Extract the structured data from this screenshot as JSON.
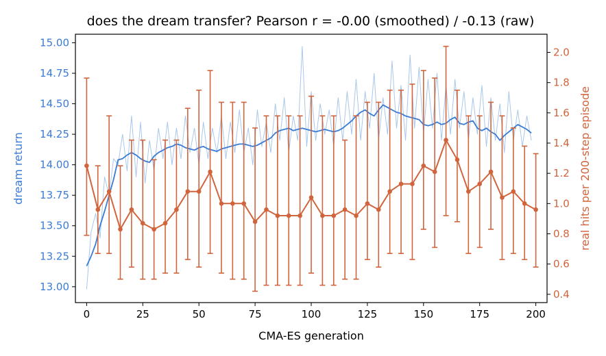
{
  "chart_data": {
    "type": "line",
    "title": "does the dream transfer?   Pearson r = -0.00 (smoothed) / -0.13 (raw)",
    "xlabel": "CMA-ES generation",
    "ylabel_left": "dream return",
    "ylabel_right": "real hits per 200-step episode",
    "xlim": [
      -5,
      205
    ],
    "ylim_left": [
      12.87,
      15.07
    ],
    "ylim_right": [
      0.345,
      2.12
    ],
    "x_ticks": [
      0,
      25,
      50,
      75,
      100,
      125,
      150,
      175,
      200
    ],
    "y_left_ticks": [
      13.0,
      13.25,
      13.5,
      13.75,
      14.0,
      14.25,
      14.5,
      14.75,
      15.0
    ],
    "y_right_ticks": [
      0.4,
      0.6,
      0.8,
      1.0,
      1.2,
      1.4,
      1.6,
      1.8,
      2.0
    ],
    "colors": {
      "dream_smoothed": "#3a7bd5",
      "dream_raw": "#a9c7ea",
      "real_hits": "#d0643c"
    },
    "series": [
      {
        "axis": "left",
        "style": "raw",
        "x": [
          0,
          2,
          4,
          6,
          8,
          10,
          12,
          14,
          16,
          18,
          20,
          22,
          24,
          26,
          28,
          30,
          32,
          34,
          36,
          38,
          40,
          42,
          44,
          46,
          48,
          50,
          52,
          54,
          56,
          58,
          60,
          62,
          64,
          66,
          68,
          70,
          72,
          74,
          76,
          78,
          80,
          82,
          84,
          86,
          88,
          90,
          92,
          94,
          96,
          98,
          100,
          102,
          104,
          106,
          108,
          110,
          112,
          114,
          116,
          118,
          120,
          122,
          124,
          126,
          128,
          130,
          132,
          134,
          136,
          138,
          140,
          142,
          144,
          146,
          148,
          150,
          152,
          154,
          156,
          158,
          160,
          162,
          164,
          166,
          168,
          170,
          172,
          174,
          176,
          178,
          180,
          182,
          184,
          186,
          188,
          190,
          192,
          194,
          196,
          198
        ],
        "values": [
          12.98,
          13.45,
          13.6,
          13.4,
          13.9,
          13.75,
          14.05,
          14.0,
          14.25,
          13.95,
          14.4,
          13.9,
          14.35,
          13.85,
          14.2,
          13.95,
          14.3,
          14.05,
          14.35,
          14.0,
          14.3,
          14.05,
          14.4,
          14.1,
          14.3,
          14.0,
          14.35,
          14.05,
          14.3,
          14.1,
          14.4,
          14.05,
          14.35,
          14.1,
          14.45,
          14.1,
          14.3,
          14.0,
          14.45,
          14.15,
          14.35,
          14.1,
          14.5,
          14.2,
          14.55,
          14.1,
          14.4,
          14.2,
          14.97,
          14.15,
          14.6,
          14.2,
          14.5,
          14.25,
          14.45,
          14.15,
          14.55,
          14.2,
          14.6,
          14.25,
          14.7,
          14.2,
          14.6,
          14.3,
          14.75,
          14.2,
          14.55,
          14.25,
          14.85,
          14.3,
          14.65,
          14.2,
          14.9,
          14.3,
          14.8,
          14.25,
          14.7,
          14.3,
          14.75,
          14.2,
          14.65,
          14.25,
          14.7,
          14.3,
          14.6,
          14.2,
          14.55,
          14.25,
          14.65,
          14.15,
          14.55,
          14.2,
          14.5,
          14.1,
          14.6,
          14.2,
          14.45,
          14.15,
          14.4,
          14.2
        ]
      },
      {
        "axis": "left",
        "style": "smoothed",
        "x": [
          0,
          2,
          4,
          6,
          8,
          10,
          12,
          14,
          16,
          18,
          20,
          22,
          24,
          26,
          28,
          30,
          32,
          34,
          36,
          38,
          40,
          42,
          44,
          46,
          48,
          50,
          52,
          54,
          56,
          58,
          60,
          62,
          64,
          66,
          68,
          70,
          72,
          74,
          76,
          78,
          80,
          82,
          84,
          86,
          88,
          90,
          92,
          94,
          96,
          98,
          100,
          102,
          104,
          106,
          108,
          110,
          112,
          114,
          116,
          118,
          120,
          122,
          124,
          126,
          128,
          130,
          132,
          134,
          136,
          138,
          140,
          142,
          144,
          146,
          148,
          150,
          152,
          154,
          156,
          158,
          160,
          162,
          164,
          166,
          168,
          170,
          172,
          174,
          176,
          178,
          180,
          182,
          184,
          186,
          188,
          190,
          192,
          194,
          196,
          198
        ],
        "values": [
          13.17,
          13.25,
          13.35,
          13.5,
          13.62,
          13.75,
          13.88,
          14.04,
          14.05,
          14.08,
          14.1,
          14.08,
          14.05,
          14.03,
          14.02,
          14.07,
          14.1,
          14.12,
          14.14,
          14.15,
          14.17,
          14.16,
          14.14,
          14.13,
          14.12,
          14.14,
          14.15,
          14.13,
          14.12,
          14.11,
          14.13,
          14.14,
          14.15,
          14.16,
          14.17,
          14.17,
          14.16,
          14.15,
          14.16,
          14.18,
          14.2,
          14.22,
          14.26,
          14.28,
          14.29,
          14.3,
          14.28,
          14.29,
          14.3,
          14.29,
          14.28,
          14.27,
          14.28,
          14.29,
          14.28,
          14.27,
          14.28,
          14.3,
          14.33,
          14.36,
          14.4,
          14.43,
          14.45,
          14.42,
          14.4,
          14.45,
          14.49,
          14.47,
          14.45,
          14.43,
          14.42,
          14.4,
          14.39,
          14.38,
          14.37,
          14.33,
          14.32,
          14.33,
          14.35,
          14.33,
          14.34,
          14.37,
          14.39,
          14.34,
          14.33,
          14.35,
          14.36,
          14.3,
          14.28,
          14.3,
          14.27,
          14.25,
          14.2,
          14.24,
          14.27,
          14.3,
          14.33,
          14.31,
          14.29,
          14.26
        ]
      },
      {
        "axis": "right",
        "style": "errorbar",
        "name": "real hits",
        "x": [
          0,
          5,
          10,
          15,
          20,
          25,
          30,
          35,
          40,
          45,
          50,
          55,
          60,
          65,
          70,
          75,
          80,
          85,
          90,
          95,
          100,
          105,
          110,
          115,
          120,
          125,
          130,
          135,
          140,
          145,
          150,
          155,
          160,
          165,
          170,
          175,
          180,
          185,
          190,
          195,
          200
        ],
        "values": [
          1.25,
          0.96,
          1.08,
          0.83,
          0.96,
          0.87,
          0.83,
          0.87,
          0.96,
          1.08,
          1.08,
          1.21,
          1.0,
          1.0,
          1.0,
          0.88,
          0.96,
          0.92,
          0.92,
          0.92,
          1.04,
          0.92,
          0.92,
          0.96,
          0.92,
          1.0,
          0.96,
          1.08,
          1.13,
          1.13,
          1.25,
          1.21,
          1.42,
          1.29,
          1.08,
          1.13,
          1.21,
          1.04,
          1.08,
          1.0,
          0.96
        ],
        "err_upper": [
          1.83,
          1.25,
          1.58,
          1.25,
          1.42,
          1.42,
          1.29,
          1.42,
          1.42,
          1.63,
          1.75,
          1.88,
          1.67,
          1.67,
          1.67,
          1.5,
          1.58,
          1.58,
          1.58,
          1.58,
          1.71,
          1.58,
          1.58,
          1.42,
          1.58,
          1.67,
          1.67,
          1.75,
          1.75,
          1.79,
          1.88,
          1.83,
          2.04,
          1.75,
          1.58,
          1.58,
          1.67,
          1.58,
          1.5,
          1.38,
          1.33
        ],
        "err_lower": [
          0.79,
          0.67,
          0.67,
          0.5,
          0.58,
          0.5,
          0.5,
          0.54,
          0.54,
          0.63,
          0.58,
          0.67,
          0.54,
          0.5,
          0.5,
          0.42,
          0.46,
          0.46,
          0.46,
          0.46,
          0.54,
          0.46,
          0.46,
          0.5,
          0.5,
          0.63,
          0.58,
          0.67,
          0.67,
          0.63,
          0.83,
          0.71,
          0.92,
          0.88,
          0.67,
          0.71,
          0.83,
          0.63,
          0.67,
          0.63,
          0.58
        ]
      }
    ],
    "grid": false,
    "legend": "none"
  }
}
